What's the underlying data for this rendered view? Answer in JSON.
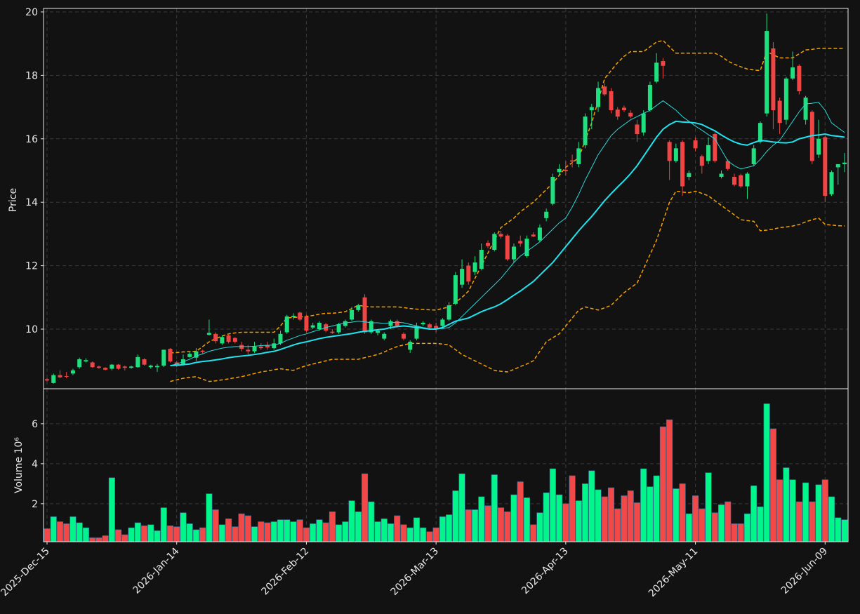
{
  "chart_data": {
    "type": "candlestick",
    "ylabel": "Price",
    "ylim": [
      8.12,
      20.11
    ],
    "yticks": [
      10,
      12,
      14,
      16,
      18,
      20
    ],
    "grid": true,
    "up_color": "#1ee07e",
    "down_color": "#f04545",
    "categories": [
      "2025-Dec-15",
      null,
      null,
      null,
      null,
      null,
      null,
      null,
      null,
      null,
      null,
      null,
      null,
      null,
      null,
      null,
      null,
      null,
      null,
      null,
      "2026-Jan-14",
      null,
      null,
      null,
      null,
      null,
      null,
      null,
      null,
      null,
      null,
      null,
      null,
      null,
      null,
      null,
      null,
      null,
      null,
      null,
      "2026-Feb-12",
      null,
      null,
      null,
      null,
      null,
      null,
      null,
      null,
      null,
      null,
      null,
      null,
      null,
      null,
      null,
      null,
      null,
      null,
      null,
      "2026-Mar-13",
      null,
      null,
      null,
      null,
      null,
      null,
      null,
      null,
      null,
      null,
      null,
      null,
      null,
      null,
      null,
      null,
      null,
      null,
      null,
      "2026-Apr-13",
      null,
      null,
      null,
      null,
      null,
      null,
      null,
      null,
      null,
      null,
      null,
      null,
      null,
      null,
      null,
      null,
      null,
      null,
      null,
      "2026-May-11",
      null,
      null,
      null,
      null,
      null,
      null,
      null,
      null,
      null,
      null,
      null,
      null,
      null,
      null,
      null,
      null,
      null,
      null,
      null,
      "2026-Jun-09",
      null,
      null,
      null
    ],
    "open": [
      8.42,
      8.3,
      8.55,
      8.52,
      8.6,
      8.8,
      8.98,
      8.95,
      8.82,
      8.78,
      8.75,
      8.88,
      8.82,
      8.78,
      8.8,
      9.05,
      8.8,
      8.8,
      8.85,
      9.38,
      8.95,
      8.9,
      9.12,
      9.1,
      9.32,
      9.82,
      9.85,
      9.55,
      9.8,
      9.72,
      9.5,
      9.35,
      9.3,
      9.45,
      9.5,
      9.4,
      9.55,
      9.9,
      10.38,
      10.52,
      10.4,
      10.05,
      10.0,
      10.15,
      9.92,
      9.9,
      10.1,
      10.3,
      10.6,
      11.0,
      9.9,
      9.88,
      9.7,
      10.1,
      10.25,
      9.85,
      9.35,
      9.7,
      10.15,
      10.15,
      10.1,
      10.1,
      10.3,
      10.8,
      11.4,
      12.0,
      11.8,
      11.9,
      12.72,
      12.5,
      13.0,
      12.95,
      12.2,
      12.78,
      12.3,
      12.98,
      12.8,
      13.5,
      13.95,
      14.95,
      15.02,
      15.32,
      15.2,
      15.8,
      16.9,
      17.0,
      17.65,
      17.5,
      16.92,
      16.98,
      16.82,
      16.45,
      16.2,
      16.9,
      17.8,
      18.45,
      15.9,
      15.3,
      15.9,
      14.8,
      15.95,
      15.45,
      15.3,
      16.15,
      14.8,
      15.3,
      14.8,
      14.85,
      14.5,
      15.2,
      15.9,
      16.8,
      18.85,
      17.2,
      16.6,
      17.9,
      18.3,
      16.6,
      16.85,
      15.5,
      16.05,
      14.25,
      15.1,
      15.2
    ],
    "high": [
      8.45,
      8.6,
      8.7,
      8.65,
      8.75,
      9.1,
      9.08,
      8.98,
      8.85,
      8.8,
      8.9,
      8.9,
      8.85,
      8.85,
      9.2,
      9.08,
      8.88,
      8.9,
      9.35,
      9.4,
      9.0,
      9.2,
      9.3,
      9.4,
      9.35,
      10.3,
      9.9,
      9.8,
      9.85,
      9.75,
      9.6,
      9.5,
      9.6,
      9.55,
      9.6,
      9.7,
      9.95,
      10.45,
      10.5,
      10.55,
      10.45,
      10.2,
      10.25,
      10.2,
      10.0,
      10.2,
      10.3,
      10.7,
      10.8,
      11.1,
      10.3,
      10.0,
      9.9,
      10.3,
      10.3,
      9.9,
      9.65,
      10.2,
      10.25,
      10.2,
      10.2,
      10.35,
      10.85,
      11.8,
      12.2,
      12.1,
      12.3,
      12.7,
      12.8,
      13.05,
      13.1,
      13.0,
      12.7,
      12.95,
      12.95,
      13.05,
      13.3,
      13.8,
      14.9,
      15.2,
      15.3,
      15.5,
      15.9,
      16.8,
      17.1,
      17.8,
      17.75,
      17.6,
      17.0,
      17.05,
      16.9,
      16.6,
      16.9,
      17.8,
      18.7,
      18.55,
      15.95,
      15.85,
      15.95,
      15.0,
      16.05,
      15.5,
      16.05,
      16.2,
      15.0,
      15.35,
      14.9,
      14.9,
      14.95,
      15.8,
      16.55,
      19.95,
      19.05,
      17.3,
      17.95,
      18.75,
      18.35,
      17.35,
      16.9,
      16.6,
      16.1,
      15.0,
      15.2,
      15.55
    ],
    "low": [
      8.35,
      8.28,
      8.45,
      8.45,
      8.55,
      8.75,
      8.95,
      8.78,
      8.75,
      8.7,
      8.7,
      8.72,
      8.7,
      8.75,
      8.78,
      8.85,
      8.75,
      8.65,
      8.8,
      8.95,
      8.8,
      8.85,
      9.1,
      9.0,
      9.22,
      9.8,
      9.55,
      9.5,
      9.55,
      9.55,
      9.3,
      9.2,
      9.25,
      9.35,
      9.35,
      9.35,
      9.5,
      9.85,
      10.3,
      10.25,
      9.9,
      10.0,
      9.95,
      9.9,
      9.85,
      9.85,
      10.05,
      10.25,
      10.55,
      9.85,
      9.85,
      9.8,
      9.65,
      10.0,
      10.05,
      9.65,
      9.25,
      9.65,
      10.1,
      10.0,
      9.9,
      10.05,
      10.25,
      10.75,
      11.3,
      11.4,
      11.7,
      11.85,
      12.55,
      12.45,
      12.85,
      12.15,
      12.1,
      12.6,
      12.25,
      12.9,
      12.75,
      13.4,
      13.9,
      14.85,
      14.85,
      15.1,
      15.1,
      15.7,
      16.3,
      16.85,
      17.35,
      16.8,
      16.6,
      16.85,
      16.65,
      15.9,
      16.1,
      16.85,
      17.75,
      17.9,
      14.7,
      15.25,
      14.2,
      14.7,
      15.6,
      14.9,
      15.2,
      15.25,
      14.75,
      15.0,
      14.5,
      14.45,
      14.1,
      15.15,
      15.85,
      16.7,
      16.3,
      16.15,
      16.45,
      17.85,
      17.4,
      16.45,
      15.2,
      15.4,
      14.0,
      14.2,
      14.55,
      14.95
    ],
    "close": [
      8.38,
      8.55,
      8.48,
      8.5,
      8.7,
      9.05,
      9.02,
      8.8,
      8.78,
      8.72,
      8.88,
      8.75,
      8.78,
      8.82,
      9.12,
      8.88,
      8.85,
      8.84,
      9.35,
      8.98,
      8.85,
      9.05,
      9.22,
      9.3,
      9.28,
      9.88,
      9.62,
      9.75,
      9.6,
      9.6,
      9.38,
      9.3,
      9.45,
      9.4,
      9.42,
      9.55,
      9.85,
      10.4,
      10.42,
      10.3,
      9.95,
      10.12,
      10.2,
      9.95,
      9.88,
      10.15,
      10.25,
      10.6,
      10.75,
      9.9,
      10.25,
      9.95,
      9.85,
      10.25,
      10.1,
      9.7,
      9.6,
      10.1,
      10.2,
      10.05,
      10.0,
      10.3,
      10.75,
      11.7,
      11.9,
      11.5,
      12.1,
      12.5,
      12.62,
      13.0,
      12.92,
      12.2,
      12.6,
      12.7,
      12.85,
      12.92,
      13.2,
      13.7,
      14.8,
      15.05,
      14.98,
      15.28,
      15.7,
      16.7,
      17.0,
      17.6,
      17.4,
      16.9,
      16.7,
      16.9,
      16.7,
      16.15,
      16.8,
      17.7,
      18.4,
      18.3,
      15.3,
      15.7,
      14.5,
      14.92,
      15.7,
      15.15,
      15.8,
      15.3,
      14.9,
      15.05,
      14.55,
      14.5,
      14.9,
      15.7,
      16.5,
      19.4,
      16.9,
      16.5,
      17.9,
      18.25,
      17.5,
      17.3,
      15.3,
      16.0,
      14.2,
      14.95,
      15.2,
      15.25
    ],
    "moving_averages": [
      {
        "color": "#2ad8d8",
        "values": [
          null,
          null,
          null,
          null,
          null,
          null,
          null,
          null,
          null,
          null,
          null,
          null,
          null,
          null,
          null,
          null,
          null,
          null,
          null,
          8.85,
          8.9,
          8.97,
          9.05,
          9.15,
          9.22,
          9.3,
          9.35,
          9.4,
          9.43,
          9.45,
          9.45,
          9.45,
          9.46,
          9.48,
          9.49,
          9.5,
          9.55,
          9.65,
          9.72,
          9.8,
          9.85,
          9.92,
          9.98,
          10.05,
          10.1,
          10.15,
          10.2,
          10.22,
          10.25,
          10.23,
          10.2,
          10.2,
          10.18,
          10.2,
          10.22,
          10.2,
          10.15,
          10.1,
          10.05,
          10.02,
          10.0,
          10.02,
          10.05,
          10.2,
          10.4,
          10.6,
          10.8,
          11.0,
          11.2,
          11.4,
          11.6,
          11.85,
          12.1,
          12.3,
          12.45,
          12.6,
          12.75,
          12.95,
          13.15,
          13.35,
          13.5,
          13.85,
          14.25,
          14.7,
          15.1,
          15.5,
          15.8,
          16.1,
          16.3,
          16.45,
          16.6,
          16.7,
          16.8,
          16.9,
          17.05,
          17.2,
          17.05,
          16.9,
          16.7,
          16.55,
          16.4,
          16.27,
          16.13,
          16.0,
          15.65,
          15.3,
          15.15,
          15.05,
          15.1,
          15.15,
          15.35,
          15.6,
          15.8,
          15.95,
          16.25,
          16.55,
          16.85,
          17.1,
          17.12,
          17.15,
          16.9,
          16.5,
          16.35,
          16.2
        ]
      },
      {
        "color": "#1fe4f0",
        "values": [
          null,
          null,
          null,
          null,
          null,
          null,
          null,
          null,
          null,
          null,
          null,
          null,
          null,
          null,
          null,
          null,
          null,
          null,
          null,
          8.85,
          8.86,
          8.88,
          8.9,
          8.95,
          8.98,
          9.0,
          9.03,
          9.06,
          9.1,
          9.13,
          9.15,
          9.17,
          9.2,
          9.23,
          9.27,
          9.3,
          9.36,
          9.43,
          9.5,
          9.56,
          9.6,
          9.65,
          9.7,
          9.74,
          9.77,
          9.8,
          9.83,
          9.86,
          9.9,
          9.93,
          9.95,
          9.98,
          10.0,
          10.05,
          10.08,
          10.1,
          10.08,
          10.05,
          10.03,
          10.0,
          10.0,
          10.05,
          10.15,
          10.25,
          10.3,
          10.35,
          10.45,
          10.55,
          10.63,
          10.7,
          10.8,
          10.93,
          11.07,
          11.2,
          11.35,
          11.5,
          11.7,
          11.9,
          12.1,
          12.35,
          12.6,
          12.85,
          13.1,
          13.33,
          13.55,
          13.8,
          14.05,
          14.27,
          14.48,
          14.68,
          14.9,
          15.15,
          15.45,
          15.75,
          16.05,
          16.3,
          16.45,
          16.55,
          16.53,
          16.52,
          16.5,
          16.45,
          16.35,
          16.25,
          16.12,
          16.0,
          15.9,
          15.83,
          15.8,
          15.88,
          15.95,
          15.93,
          15.9,
          15.88,
          15.87,
          15.9,
          16.0,
          16.05,
          16.1,
          16.12,
          16.15,
          16.1,
          16.08,
          16.05
        ]
      }
    ],
    "bands": {
      "color": "#f5a000",
      "linestyle": "dashed",
      "upper": [
        null,
        null,
        null,
        null,
        null,
        null,
        null,
        null,
        null,
        null,
        null,
        null,
        null,
        null,
        null,
        null,
        null,
        null,
        null,
        9.25,
        9.26,
        9.28,
        9.29,
        9.3,
        9.45,
        9.6,
        9.7,
        9.78,
        9.85,
        9.88,
        9.9,
        9.9,
        9.9,
        9.9,
        9.9,
        9.9,
        10.1,
        10.35,
        10.37,
        10.38,
        10.4,
        10.43,
        10.47,
        10.5,
        10.5,
        10.52,
        10.55,
        10.65,
        10.75,
        10.72,
        10.7,
        10.7,
        10.7,
        10.7,
        10.7,
        10.68,
        10.65,
        10.63,
        10.62,
        10.61,
        10.6,
        10.65,
        10.7,
        10.85,
        11.0,
        11.2,
        11.6,
        12.0,
        12.4,
        12.8,
        13.2,
        13.35,
        13.5,
        13.7,
        13.85,
        14.0,
        14.2,
        14.4,
        14.6,
        14.85,
        15.1,
        15.25,
        15.4,
        15.95,
        16.5,
        17.2,
        17.9,
        18.15,
        18.4,
        18.6,
        18.75,
        18.75,
        18.75,
        18.9,
        19.05,
        19.1,
        18.9,
        18.7,
        18.7,
        18.7,
        18.7,
        18.7,
        18.7,
        18.7,
        18.6,
        18.45,
        18.35,
        18.27,
        18.2,
        18.17,
        18.15,
        18.75,
        18.65,
        18.55,
        18.55,
        18.55,
        18.68,
        18.8,
        18.82,
        18.85,
        18.85,
        18.85,
        18.85,
        18.85
      ],
      "lower": [
        null,
        null,
        null,
        null,
        null,
        null,
        null,
        null,
        null,
        null,
        null,
        null,
        null,
        null,
        null,
        null,
        null,
        null,
        null,
        8.35,
        8.4,
        8.45,
        8.48,
        8.5,
        8.42,
        8.35,
        8.37,
        8.4,
        8.43,
        8.47,
        8.5,
        8.55,
        8.6,
        8.65,
        8.68,
        8.72,
        8.75,
        8.72,
        8.7,
        8.78,
        8.85,
        8.9,
        8.95,
        9.0,
        9.05,
        9.05,
        9.05,
        9.05,
        9.05,
        9.1,
        9.15,
        9.2,
        9.28,
        9.37,
        9.45,
        9.5,
        9.55,
        9.55,
        9.55,
        9.55,
        9.55,
        9.53,
        9.5,
        9.35,
        9.2,
        9.1,
        9.0,
        8.9,
        8.8,
        8.7,
        8.67,
        8.65,
        8.73,
        8.82,
        8.9,
        9.0,
        9.3,
        9.6,
        9.73,
        9.85,
        10.1,
        10.35,
        10.6,
        10.7,
        10.65,
        10.6,
        10.67,
        10.75,
        10.95,
        11.15,
        11.3,
        11.45,
        11.9,
        12.35,
        12.8,
        13.4,
        14.0,
        14.35,
        14.32,
        14.3,
        14.35,
        14.28,
        14.2,
        14.05,
        13.9,
        13.75,
        13.6,
        13.45,
        13.42,
        13.4,
        13.1,
        13.12,
        13.15,
        13.2,
        13.22,
        13.25,
        13.3,
        13.38,
        13.45,
        13.5,
        13.3,
        13.28,
        13.26,
        13.25
      ]
    },
    "volume": {
      "ylabel": "Volume  10⁶",
      "ylim": [
        0.1,
        7.75
      ],
      "yticks": [
        2,
        4,
        6
      ],
      "up_color": "#00f58a",
      "down_color": "#f24848",
      "values": [
        0.75,
        1.35,
        1.1,
        1.0,
        1.35,
        1.05,
        0.8,
        0.3,
        0.3,
        0.4,
        3.3,
        0.7,
        0.45,
        0.8,
        1.05,
        0.9,
        0.95,
        0.65,
        1.8,
        0.9,
        0.85,
        1.55,
        1.0,
        0.7,
        0.8,
        2.5,
        1.7,
        0.95,
        1.25,
        0.85,
        1.5,
        1.4,
        0.85,
        1.1,
        1.05,
        1.1,
        1.2,
        1.2,
        1.1,
        1.2,
        0.8,
        1.0,
        1.2,
        1.05,
        1.6,
        0.95,
        1.1,
        2.15,
        1.6,
        3.5,
        2.1,
        1.1,
        1.25,
        1.0,
        1.4,
        0.95,
        0.8,
        1.3,
        0.8,
        0.6,
        0.8,
        1.35,
        1.45,
        2.65,
        3.5,
        1.7,
        1.7,
        2.35,
        1.9,
        3.45,
        1.8,
        1.6,
        2.45,
        3.1,
        2.3,
        0.95,
        1.55,
        2.55,
        3.75,
        2.45,
        2.0,
        3.4,
        2.15,
        3.0,
        3.65,
        2.7,
        2.35,
        2.8,
        1.75,
        2.4,
        2.65,
        2.05,
        3.75,
        2.85,
        3.4,
        5.85,
        6.2,
        2.75,
        3.0,
        1.5,
        2.4,
        1.75,
        3.55,
        1.55,
        1.95,
        2.1,
        1.0,
        1.0,
        1.5,
        2.9,
        1.85,
        7.0,
        5.75,
        3.2,
        3.8,
        3.2,
        2.1,
        3.05,
        2.1,
        2.95,
        3.2,
        2.35,
        1.3,
        1.2
      ]
    }
  }
}
